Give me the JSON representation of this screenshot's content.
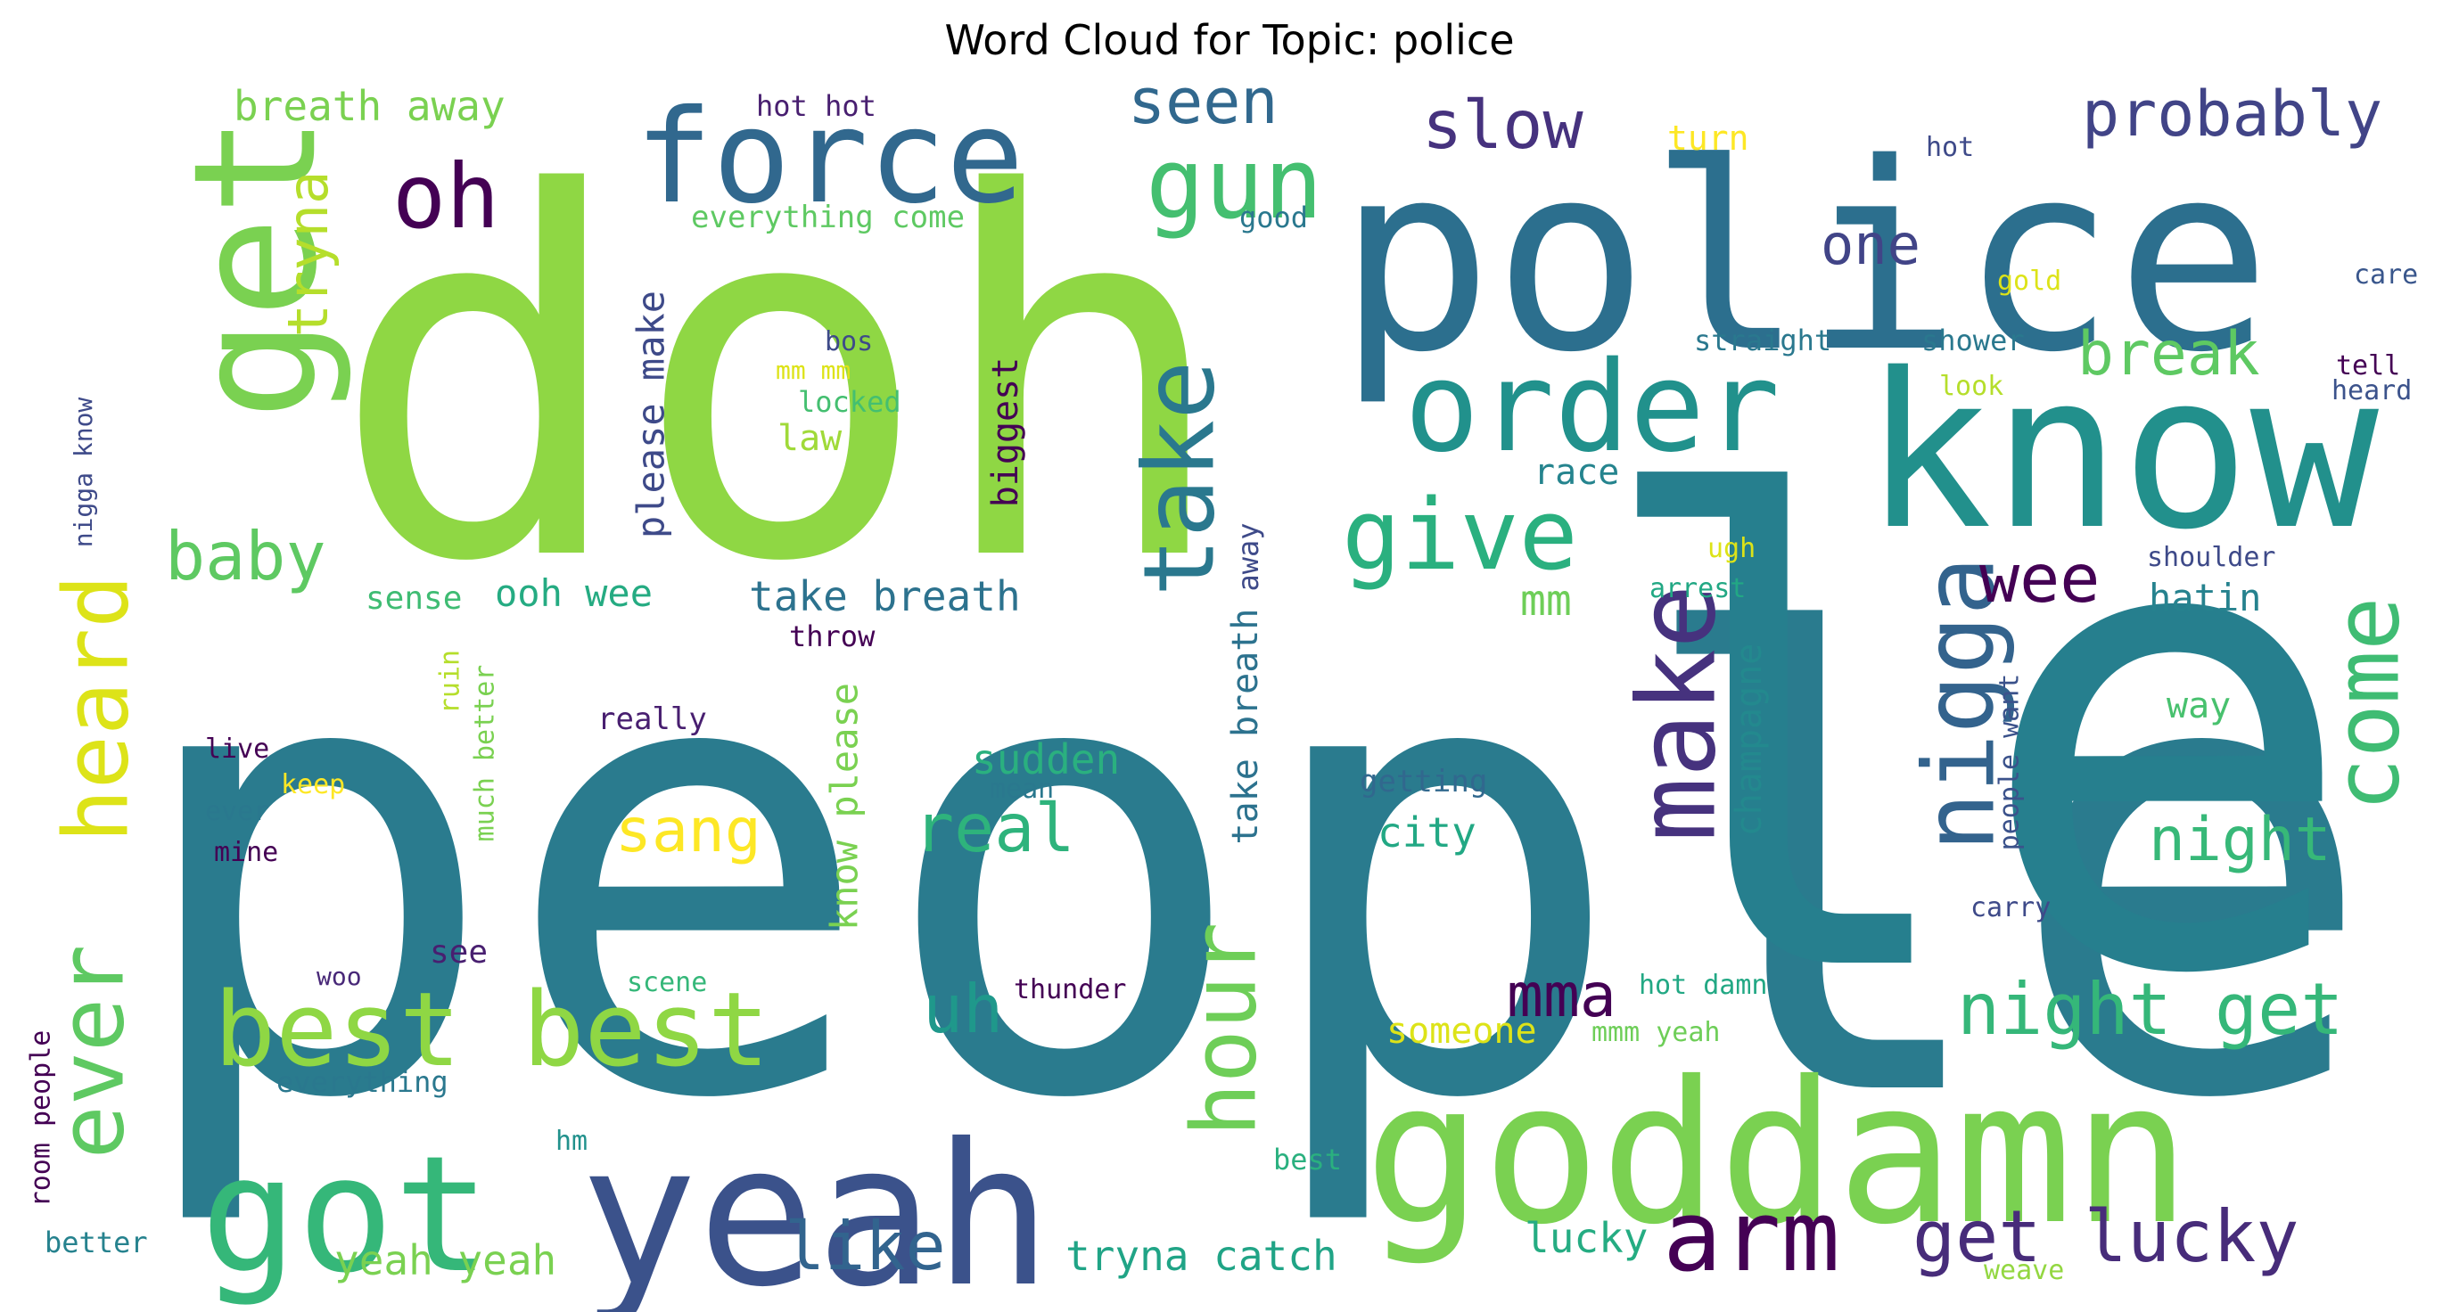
{
  "chart_data": {
    "type": "wordcloud",
    "title": "Word Cloud for Topic: police",
    "words": [
      {
        "text": "people",
        "weight": 100,
        "color": "#2a7b8e"
      },
      {
        "text": "doh",
        "weight": 92,
        "color": "#8fd744"
      },
      {
        "text": "police",
        "weight": 62,
        "color": "#2c6f8e"
      },
      {
        "text": "le",
        "weight": 100,
        "color": "#267f8e"
      },
      {
        "text": "know",
        "weight": 42,
        "color": "#22908c"
      },
      {
        "text": "goddamn",
        "weight": 42,
        "color": "#7ad151"
      },
      {
        "text": "yeah",
        "weight": 40,
        "color": "#3b528b"
      },
      {
        "text": "got",
        "weight": 34,
        "color": "#35b779"
      },
      {
        "text": "get",
        "weight": 31,
        "color": "#7ad151"
      },
      {
        "text": "force",
        "weight": 22,
        "color": "#31688e"
      },
      {
        "text": "order",
        "weight": 23,
        "color": "#21918c"
      },
      {
        "text": "nigga",
        "weight": 21,
        "color": "#33638d"
      },
      {
        "text": "best best",
        "weight": 20,
        "color": "#8fd744"
      },
      {
        "text": "make",
        "weight": 20,
        "color": "#46327e"
      },
      {
        "text": "arm",
        "weight": 18,
        "color": "#440154"
      },
      {
        "text": "give",
        "weight": 17,
        "color": "#2ab07f"
      },
      {
        "text": "gun",
        "weight": 16,
        "color": "#44bf70"
      },
      {
        "text": "take",
        "weight": 16,
        "color": "#2a788e"
      },
      {
        "text": "heard",
        "weight": 17,
        "color": "#dde318"
      },
      {
        "text": "ever",
        "weight": 17,
        "color": "#5ec962"
      },
      {
        "text": "hour",
        "weight": 16,
        "color": "#6ece58"
      },
      {
        "text": "come",
        "weight": 16,
        "color": "#3fbc73"
      },
      {
        "text": "oh",
        "weight": 14,
        "color": "#440154"
      },
      {
        "text": "get lucky",
        "weight": 12,
        "color": "#472c7a"
      },
      {
        "text": "night get",
        "weight": 11,
        "color": "#35b779"
      },
      {
        "text": "like",
        "weight": 11,
        "color": "#32648e"
      },
      {
        "text": "slow",
        "weight": 10,
        "color": "#46327e"
      },
      {
        "text": "uh",
        "weight": 10,
        "color": "#1f988b"
      },
      {
        "text": "wee",
        "weight": 10,
        "color": "#440154"
      },
      {
        "text": "real",
        "weight": 10,
        "color": "#2eb37c"
      },
      {
        "text": "baby",
        "weight": 10,
        "color": "#5ec962"
      },
      {
        "text": "probably",
        "weight": 9,
        "color": "#414487"
      },
      {
        "text": "seen",
        "weight": 9,
        "color": "#31688e"
      },
      {
        "text": "mma",
        "weight": 9,
        "color": "#440154"
      },
      {
        "text": "night",
        "weight": 9,
        "color": "#37b878"
      },
      {
        "text": "break",
        "weight": 9,
        "color": "#5ec962"
      },
      {
        "text": "sang",
        "weight": 9,
        "color": "#fde725"
      },
      {
        "text": "tryna",
        "weight": 8,
        "color": "#b5de2b"
      },
      {
        "text": "one",
        "weight": 8,
        "color": "#414487"
      },
      {
        "text": "breath away",
        "weight": 6,
        "color": "#7ad151"
      },
      {
        "text": "take breath",
        "weight": 6,
        "color": "#2c728e"
      },
      {
        "text": "tryna catch",
        "weight": 6,
        "color": "#20a486"
      },
      {
        "text": "yeah yeah",
        "weight": 6,
        "color": "#7ad151"
      },
      {
        "text": "sudden",
        "weight": 6,
        "color": "#2ab07f"
      },
      {
        "text": "city",
        "weight": 6,
        "color": "#22a884"
      },
      {
        "text": "lucky",
        "weight": 6,
        "color": "#25ac82"
      },
      {
        "text": "mm",
        "weight": 6,
        "color": "#6ece58"
      },
      {
        "text": "hatin",
        "weight": 5,
        "color": "#26828e"
      },
      {
        "text": "ooh wee",
        "weight": 5,
        "color": "#25ab82"
      },
      {
        "text": "please make",
        "weight": 5,
        "color": "#3e4a89"
      },
      {
        "text": "know please",
        "weight": 5,
        "color": "#7ad151"
      },
      {
        "text": "biggest",
        "weight": 5,
        "color": "#440154"
      },
      {
        "text": "champagne",
        "weight": 5,
        "color": "#23898e"
      },
      {
        "text": "take breath",
        "weight": 5,
        "color": "#2c728e"
      },
      {
        "text": "law",
        "weight": 5,
        "color": "#a0da39"
      },
      {
        "text": "someone",
        "weight": 5,
        "color": "#dde318"
      },
      {
        "text": "race",
        "weight": 5,
        "color": "#25848e"
      },
      {
        "text": "way",
        "weight": 5,
        "color": "#48c16e"
      },
      {
        "text": "sense",
        "weight": 5,
        "color": "#3fbc73"
      },
      {
        "text": "see",
        "weight": 5,
        "color": "#481f70"
      },
      {
        "text": "turn",
        "weight": 4,
        "color": "#fde725"
      },
      {
        "text": "everything come",
        "weight": 4,
        "color": "#5ec962"
      },
      {
        "text": "hot hot",
        "weight": 4,
        "color": "#481f70"
      },
      {
        "text": "good",
        "weight": 4,
        "color": "#2a788e"
      },
      {
        "text": "hot",
        "weight": 3,
        "color": "#3e4a89"
      },
      {
        "text": "gold",
        "weight": 3,
        "color": "#dde318"
      },
      {
        "text": "care",
        "weight": 3,
        "color": "#39568c"
      },
      {
        "text": "straight",
        "weight": 3,
        "color": "#2a788e"
      },
      {
        "text": "shower",
        "weight": 3,
        "color": "#2a788e"
      },
      {
        "text": "look",
        "weight": 3,
        "color": "#b5de2b"
      },
      {
        "text": "tell",
        "weight": 3,
        "color": "#440154"
      },
      {
        "text": "heard",
        "weight": 3,
        "color": "#3b528b"
      },
      {
        "text": "shoulder",
        "weight": 3,
        "color": "#3e4a89"
      },
      {
        "text": "arrest",
        "weight": 3,
        "color": "#22a884"
      },
      {
        "text": "ugh",
        "weight": 3,
        "color": "#dde318"
      },
      {
        "text": "people want",
        "weight": 3,
        "color": "#3b528b"
      },
      {
        "text": "carry",
        "weight": 3,
        "color": "#3e4a89"
      },
      {
        "text": "getting",
        "weight": 4,
        "color": "#31688e"
      },
      {
        "text": "mean",
        "weight": 3,
        "color": "#2a788e"
      },
      {
        "text": "throw",
        "weight": 3,
        "color": "#440154"
      },
      {
        "text": "really",
        "weight": 4,
        "color": "#481f70"
      },
      {
        "text": "away",
        "weight": 4,
        "color": "#3e4a89"
      },
      {
        "text": "bos",
        "weight": 3,
        "color": "#3e4a89"
      },
      {
        "text": "mm mm",
        "weight": 3,
        "color": "#dde318"
      },
      {
        "text": "locked",
        "weight": 3,
        "color": "#44bf70"
      },
      {
        "text": "nigga know",
        "weight": 3,
        "color": "#3e4a89"
      },
      {
        "text": "live",
        "weight": 3,
        "color": "#440154"
      },
      {
        "text": "keep",
        "weight": 3,
        "color": "#fde725"
      },
      {
        "text": "ever",
        "weight": 3,
        "color": "#2a788e"
      },
      {
        "text": "mine",
        "weight": 3,
        "color": "#440154"
      },
      {
        "text": "ruin",
        "weight": 3,
        "color": "#b5de2b"
      },
      {
        "text": "much better",
        "weight": 3,
        "color": "#7ad151"
      },
      {
        "text": "woo",
        "weight": 3,
        "color": "#482878"
      },
      {
        "text": "scene",
        "weight": 3,
        "color": "#35b779"
      },
      {
        "text": "thunder",
        "weight": 3,
        "color": "#440154"
      },
      {
        "text": "hot damn",
        "weight": 3,
        "color": "#22a884"
      },
      {
        "text": "mmm yeah",
        "weight": 3,
        "color": "#6ece58"
      },
      {
        "text": "everything",
        "weight": 3,
        "color": "#2a788e"
      },
      {
        "text": "room people",
        "weight": 3,
        "color": "#440154"
      },
      {
        "text": "hm",
        "weight": 3,
        "color": "#21918c"
      },
      {
        "text": "best",
        "weight": 3,
        "color": "#2ab07f"
      },
      {
        "text": "weave",
        "weight": 3,
        "color": "#93d741"
      },
      {
        "text": "better",
        "weight": 3,
        "color": "#26828e"
      }
    ]
  }
}
